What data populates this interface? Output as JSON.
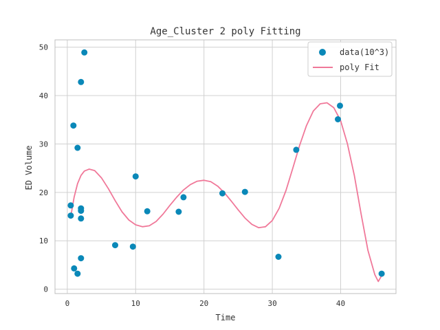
{
  "chart_data": {
    "type": "scatter",
    "title": "Age_Cluster 2 poly Fitting",
    "xlabel": "Time",
    "ylabel": "ED Volume",
    "xlim": [
      -1.8,
      48.1
    ],
    "ylim": [
      -0.9,
      51.5
    ],
    "xticks": [
      0,
      10,
      20,
      30,
      40
    ],
    "yticks": [
      0,
      10,
      20,
      30,
      40,
      50
    ],
    "grid": true,
    "legend_position": "top-right",
    "colors": {
      "scatter": "#0a88b8",
      "fit": "#f07899",
      "grid": "#d0d0d0",
      "spine": "#bfbfbf"
    },
    "series": [
      {
        "name": "data(10^3)",
        "kind": "scatter",
        "points": [
          [
            0.5,
            17.3
          ],
          [
            0.5,
            15.2
          ],
          [
            0.9,
            33.8
          ],
          [
            1.0,
            4.3
          ],
          [
            1.5,
            29.2
          ],
          [
            1.5,
            3.2
          ],
          [
            2.0,
            42.8
          ],
          [
            2.0,
            16.7
          ],
          [
            2.0,
            16.2
          ],
          [
            2.0,
            14.6
          ],
          [
            2.0,
            6.4
          ],
          [
            2.5,
            48.9
          ],
          [
            7.0,
            9.1
          ],
          [
            9.6,
            8.8
          ],
          [
            10.0,
            23.3
          ],
          [
            11.7,
            16.1
          ],
          [
            16.3,
            16.0
          ],
          [
            17.0,
            19.0
          ],
          [
            22.7,
            19.8
          ],
          [
            26.0,
            20.1
          ],
          [
            30.9,
            6.7
          ],
          [
            33.5,
            28.8
          ],
          [
            39.6,
            35.1
          ],
          [
            39.9,
            37.9
          ],
          [
            46.0,
            3.2
          ]
        ]
      },
      {
        "name": "poly Fit",
        "kind": "line",
        "points": [
          [
            0.5,
            15.0
          ],
          [
            1.0,
            19.0
          ],
          [
            1.5,
            21.8
          ],
          [
            2.0,
            23.5
          ],
          [
            2.5,
            24.4
          ],
          [
            3.2,
            24.8
          ],
          [
            4.0,
            24.5
          ],
          [
            5.0,
            23.0
          ],
          [
            6.0,
            20.8
          ],
          [
            7.0,
            18.3
          ],
          [
            8.0,
            16.0
          ],
          [
            9.0,
            14.3
          ],
          [
            10.0,
            13.3
          ],
          [
            11.0,
            12.9
          ],
          [
            12.0,
            13.1
          ],
          [
            13.0,
            14.0
          ],
          [
            14.0,
            15.5
          ],
          [
            15.0,
            17.3
          ],
          [
            16.0,
            19.0
          ],
          [
            17.0,
            20.5
          ],
          [
            18.0,
            21.6
          ],
          [
            19.0,
            22.3
          ],
          [
            20.0,
            22.5
          ],
          [
            21.0,
            22.2
          ],
          [
            22.0,
            21.3
          ],
          [
            23.0,
            19.9
          ],
          [
            24.0,
            18.2
          ],
          [
            25.0,
            16.4
          ],
          [
            26.0,
            14.7
          ],
          [
            27.0,
            13.4
          ],
          [
            28.0,
            12.7
          ],
          [
            29.0,
            12.9
          ],
          [
            30.0,
            14.2
          ],
          [
            31.0,
            16.7
          ],
          [
            32.0,
            20.4
          ],
          [
            33.0,
            25.0
          ],
          [
            34.0,
            29.7
          ],
          [
            35.0,
            33.8
          ],
          [
            36.0,
            36.8
          ],
          [
            37.0,
            38.3
          ],
          [
            38.0,
            38.5
          ],
          [
            39.0,
            37.5
          ],
          [
            40.0,
            34.8
          ],
          [
            41.0,
            30.0
          ],
          [
            42.0,
            23.5
          ],
          [
            43.0,
            15.5
          ],
          [
            44.0,
            8.0
          ],
          [
            45.0,
            3.0
          ],
          [
            45.5,
            1.6
          ],
          [
            46.0,
            2.8
          ]
        ]
      }
    ],
    "legend": {
      "scatter_label": "data(10^3)",
      "fit_label": "poly Fit"
    }
  }
}
